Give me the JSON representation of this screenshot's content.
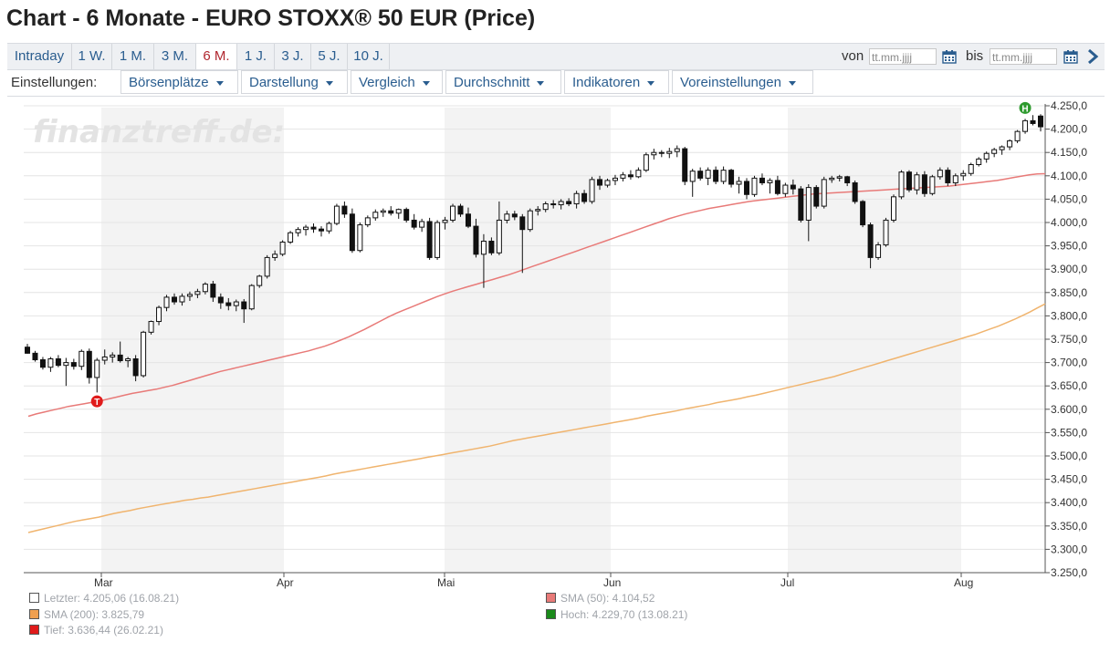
{
  "title": "Chart - 6 Monate - EURO STOXX® 50 EUR (Price)",
  "ranges": [
    "Intraday",
    "1 W.",
    "1 M.",
    "3 M.",
    "6 M.",
    "1 J.",
    "3 J.",
    "5 J.",
    "10 J."
  ],
  "active_range": "6 M.",
  "date_filter": {
    "from_label": "von",
    "from_placeholder": "tt.mm.jjjj",
    "to_label": "bis",
    "to_placeholder": "tt.mm.jjjj"
  },
  "settings": {
    "label": "Einstellungen:",
    "menus": [
      "Börsenplätze",
      "Darstellung",
      "Vergleich",
      "Durchschnitt",
      "Indikatoren",
      "Voreinstellungen"
    ]
  },
  "watermark": "finanztreff.de:",
  "colors": {
    "sma50": "#e87a78",
    "sma200": "#f0b46e",
    "low_marker": "#e01b1b",
    "high_marker": "#2e9a2e",
    "accent": "#2a5d8f",
    "active": "#b0272f"
  },
  "chart_data": {
    "type": "candlestick",
    "x_tick_labels": [
      "Mar",
      "Apr",
      "Mai",
      "Jun",
      "Jul",
      "Aug"
    ],
    "y_ticks": [
      "4.250,0",
      "4.200,0",
      "4.150,0",
      "4.100,0",
      "4.050,0",
      "4.000,0",
      "3.950,0",
      "3.900,0",
      "3.850,0",
      "3.800,0",
      "3.750,0",
      "3.700,0",
      "3.650,0",
      "3.600,0",
      "3.550,0",
      "3.500,0",
      "3.450,0",
      "3.400,0",
      "3.350,0",
      "3.300,0",
      "3.250,0"
    ],
    "ylim": [
      3250,
      4260
    ],
    "grid": true,
    "month_bands": [
      "Mar",
      "Mai",
      "Jul"
    ],
    "candles": [
      [
        3733,
        3740,
        3719,
        3720
      ],
      [
        3720,
        3725,
        3702,
        3706
      ],
      [
        3706,
        3712,
        3685,
        3690
      ],
      [
        3690,
        3712,
        3680,
        3708
      ],
      [
        3708,
        3716,
        3690,
        3694
      ],
      [
        3694,
        3710,
        3650,
        3700
      ],
      [
        3700,
        3708,
        3685,
        3692
      ],
      [
        3692,
        3728,
        3684,
        3724
      ],
      [
        3724,
        3730,
        3655,
        3668
      ],
      [
        3668,
        3710,
        3636,
        3705
      ],
      [
        3705,
        3728,
        3696,
        3712
      ],
      [
        3712,
        3722,
        3700,
        3716
      ],
      [
        3716,
        3745,
        3700,
        3704
      ],
      [
        3704,
        3712,
        3690,
        3708
      ],
      [
        3708,
        3716,
        3660,
        3672
      ],
      [
        3672,
        3768,
        3668,
        3765
      ],
      [
        3765,
        3790,
        3760,
        3788
      ],
      [
        3788,
        3822,
        3780,
        3818
      ],
      [
        3818,
        3845,
        3810,
        3840
      ],
      [
        3840,
        3848,
        3824,
        3830
      ],
      [
        3830,
        3848,
        3822,
        3842
      ],
      [
        3842,
        3852,
        3832,
        3846
      ],
      [
        3846,
        3858,
        3838,
        3852
      ],
      [
        3852,
        3872,
        3846,
        3868
      ],
      [
        3868,
        3875,
        3830,
        3840
      ],
      [
        3840,
        3848,
        3815,
        3828
      ],
      [
        3828,
        3838,
        3812,
        3822
      ],
      [
        3822,
        3835,
        3810,
        3830
      ],
      [
        3830,
        3836,
        3785,
        3815
      ],
      [
        3815,
        3868,
        3812,
        3865
      ],
      [
        3865,
        3888,
        3860,
        3885
      ],
      [
        3885,
        3930,
        3880,
        3925
      ],
      [
        3925,
        3940,
        3918,
        3932
      ],
      [
        3932,
        3962,
        3928,
        3958
      ],
      [
        3958,
        3982,
        3954,
        3978
      ],
      [
        3978,
        3990,
        3970,
        3985
      ],
      [
        3985,
        3995,
        3972,
        3990
      ],
      [
        3990,
        3998,
        3978,
        3986
      ],
      [
        3986,
        3992,
        3970,
        3982
      ],
      [
        3982,
        4002,
        3976,
        3998
      ],
      [
        3998,
        4040,
        3994,
        4035
      ],
      [
        4035,
        4045,
        4010,
        4018
      ],
      [
        4018,
        4030,
        3935,
        3940
      ],
      [
        3940,
        4000,
        3936,
        3995
      ],
      [
        3995,
        4015,
        3990,
        4010
      ],
      [
        4010,
        4028,
        4004,
        4022
      ],
      [
        4022,
        4030,
        4012,
        4025
      ],
      [
        4025,
        4035,
        4015,
        4020
      ],
      [
        4020,
        4030,
        4008,
        4028
      ],
      [
        4028,
        4032,
        4000,
        4005
      ],
      [
        4005,
        4018,
        3985,
        3990
      ],
      [
        3990,
        4008,
        3980,
        4002
      ],
      [
        4002,
        4010,
        3920,
        3925
      ],
      [
        3925,
        4005,
        3920,
        4000
      ],
      [
        4000,
        4012,
        3985,
        4005
      ],
      [
        4005,
        4040,
        4000,
        4035
      ],
      [
        4035,
        4040,
        4012,
        4018
      ],
      [
        4018,
        4032,
        3988,
        3992
      ],
      [
        3992,
        4008,
        3925,
        3932
      ],
      [
        3932,
        3975,
        3860,
        3960
      ],
      [
        3960,
        3968,
        3930,
        3935
      ],
      [
        3935,
        4045,
        3930,
        4005
      ],
      [
        4005,
        4025,
        3998,
        4018
      ],
      [
        4018,
        4025,
        4005,
        4012
      ],
      [
        4012,
        4018,
        3892,
        3985
      ],
      [
        3985,
        4030,
        3980,
        4025
      ],
      [
        4025,
        4035,
        4015,
        4028
      ],
      [
        4028,
        4045,
        4022,
        4040
      ],
      [
        4040,
        4048,
        4030,
        4038
      ],
      [
        4038,
        4050,
        4028,
        4045
      ],
      [
        4045,
        4052,
        4035,
        4040
      ],
      [
        4040,
        4068,
        4030,
        4062
      ],
      [
        4062,
        4070,
        4040,
        4045
      ],
      [
        4045,
        4098,
        4040,
        4092
      ],
      [
        4092,
        4100,
        4070,
        4080
      ],
      [
        4080,
        4094,
        4075,
        4090
      ],
      [
        4090,
        4102,
        4080,
        4095
      ],
      [
        4095,
        4108,
        4088,
        4102
      ],
      [
        4102,
        4112,
        4092,
        4098
      ],
      [
        4098,
        4118,
        4095,
        4112
      ],
      [
        4112,
        4150,
        4108,
        4145
      ],
      [
        4145,
        4158,
        4135,
        4150
      ],
      [
        4150,
        4155,
        4140,
        4148
      ],
      [
        4148,
        4160,
        4138,
        4152
      ],
      [
        4152,
        4165,
        4140,
        4158
      ],
      [
        4158,
        4162,
        4080,
        4088
      ],
      [
        4088,
        4115,
        4055,
        4110
      ],
      [
        4110,
        4118,
        4090,
        4095
      ],
      [
        4095,
        4118,
        4080,
        4112
      ],
      [
        4112,
        4120,
        4082,
        4088
      ],
      [
        4088,
        4120,
        4082,
        4112
      ],
      [
        4112,
        4115,
        4075,
        4082
      ],
      [
        4082,
        4098,
        4062,
        4088
      ],
      [
        4088,
        4095,
        4050,
        4060
      ],
      [
        4060,
        4100,
        4055,
        4095
      ],
      [
        4095,
        4105,
        4080,
        4085
      ],
      [
        4085,
        4095,
        4062,
        4090
      ],
      [
        4090,
        4100,
        4058,
        4062
      ],
      [
        4062,
        4085,
        4055,
        4080
      ],
      [
        4080,
        4092,
        4060,
        4072
      ],
      [
        4072,
        4078,
        4000,
        4005
      ],
      [
        4005,
        4082,
        3960,
        4075
      ],
      [
        4075,
        4080,
        4030,
        4035
      ],
      [
        4035,
        4098,
        4030,
        4092
      ],
      [
        4092,
        4100,
        4085,
        4095
      ],
      [
        4095,
        4102,
        4088,
        4098
      ],
      [
        4098,
        4100,
        4078,
        4085
      ],
      [
        4085,
        4090,
        4040,
        4045
      ],
      [
        4045,
        4048,
        3990,
        3995
      ],
      [
        3995,
        4000,
        3902,
        3925
      ],
      [
        3925,
        3958,
        3920,
        3952
      ],
      [
        3952,
        4010,
        3948,
        4005
      ],
      [
        4005,
        4060,
        4000,
        4055
      ],
      [
        4055,
        4112,
        4050,
        4108
      ],
      [
        4108,
        4112,
        4065,
        4070
      ],
      [
        4070,
        4108,
        4060,
        4102
      ],
      [
        4102,
        4110,
        4055,
        4062
      ],
      [
        4062,
        4102,
        4058,
        4098
      ],
      [
        4098,
        4118,
        4092,
        4112
      ],
      [
        4112,
        4118,
        4078,
        4085
      ],
      [
        4085,
        4105,
        4078,
        4100
      ],
      [
        4100,
        4112,
        4090,
        4105
      ],
      [
        4105,
        4128,
        4100,
        4124
      ],
      [
        4124,
        4140,
        4120,
        4136
      ],
      [
        4136,
        4152,
        4128,
        4148
      ],
      [
        4148,
        4160,
        4140,
        4156
      ],
      [
        4156,
        4165,
        4145,
        4162
      ],
      [
        4162,
        4178,
        4155,
        4175
      ],
      [
        4175,
        4198,
        4170,
        4195
      ],
      [
        4195,
        4222,
        4190,
        4218
      ],
      [
        4218,
        4230,
        4208,
        4212
      ],
      [
        4228,
        4232,
        4195,
        4205
      ]
    ],
    "sma50": [
      3585,
      3590,
      3594,
      3598,
      3602,
      3606,
      3609,
      3612,
      3615,
      3618,
      3622,
      3626,
      3630,
      3634,
      3637,
      3640,
      3643,
      3647,
      3651,
      3656,
      3661,
      3666,
      3671,
      3676,
      3681,
      3685,
      3689,
      3693,
      3697,
      3701,
      3705,
      3709,
      3713,
      3717,
      3721,
      3725,
      3730,
      3735,
      3741,
      3748,
      3755,
      3763,
      3771,
      3780,
      3789,
      3798,
      3806,
      3813,
      3820,
      3827,
      3834,
      3841,
      3847,
      3853,
      3858,
      3863,
      3868,
      3873,
      3878,
      3883,
      3888,
      3894,
      3900,
      3906,
      3912,
      3918,
      3924,
      3930,
      3936,
      3942,
      3948,
      3954,
      3960,
      3966,
      3972,
      3978,
      3984,
      3990,
      3996,
      4002,
      4008,
      4013,
      4018,
      4022,
      4026,
      4030,
      4033,
      4036,
      4039,
      4042,
      4045,
      4047,
      4049,
      4051,
      4053,
      4055,
      4057,
      4059,
      4061,
      4062,
      4063,
      4064,
      4065,
      4066,
      4067,
      4068,
      4069,
      4070,
      4071,
      4072,
      4073,
      4074,
      4075,
      4076,
      4077,
      4078,
      4080,
      4082,
      4084,
      4086,
      4088,
      4090,
      4093,
      4096,
      4099,
      4102,
      4104,
      4104.52
    ],
    "sma200": [
      3336,
      3340,
      3344,
      3348,
      3352,
      3356,
      3360,
      3363,
      3366,
      3369,
      3373,
      3377,
      3380,
      3383,
      3387,
      3390,
      3393,
      3396,
      3399,
      3402,
      3405,
      3407,
      3410,
      3412,
      3415,
      3418,
      3421,
      3424,
      3427,
      3430,
      3433,
      3436,
      3439,
      3442,
      3445,
      3448,
      3451,
      3454,
      3457,
      3461,
      3464,
      3467,
      3470,
      3473,
      3476,
      3479,
      3482,
      3485,
      3488,
      3491,
      3494,
      3497,
      3500,
      3503,
      3506,
      3509,
      3512,
      3515,
      3518,
      3521,
      3525,
      3529,
      3533,
      3536,
      3539,
      3542,
      3545,
      3548,
      3551,
      3554,
      3557,
      3560,
      3563,
      3566,
      3569,
      3572,
      3575,
      3578,
      3581,
      3585,
      3588,
      3591,
      3594,
      3597,
      3601,
      3604,
      3607,
      3610,
      3614,
      3617,
      3620,
      3623,
      3627,
      3630,
      3634,
      3638,
      3642,
      3646,
      3650,
      3654,
      3658,
      3662,
      3666,
      3670,
      3675,
      3680,
      3685,
      3690,
      3695,
      3700,
      3705,
      3710,
      3715,
      3720,
      3725,
      3730,
      3735,
      3740,
      3745,
      3750,
      3755,
      3760,
      3766,
      3772,
      3778,
      3785,
      3792,
      3800,
      3808,
      3817,
      3825.79
    ],
    "high_marker": {
      "label": "H",
      "value": 4229.7
    },
    "low_marker": {
      "label": "T",
      "value": 3636.44
    },
    "legend": [
      {
        "text": "Letzter: 4.205,06 (16.08.21)",
        "color": "#ffffff"
      },
      {
        "text": "SMA (200): 3.825,79",
        "color": "#f0a050"
      },
      {
        "text": "Tief: 3.636,44 (26.02.21)",
        "color": "#e01b1b"
      },
      {
        "text": "SMA (50): 4.104,52",
        "color": "#e87a78"
      },
      {
        "text": "Hoch: 4.229,70 (13.08.21)",
        "color": "#1a8a1a"
      }
    ]
  }
}
